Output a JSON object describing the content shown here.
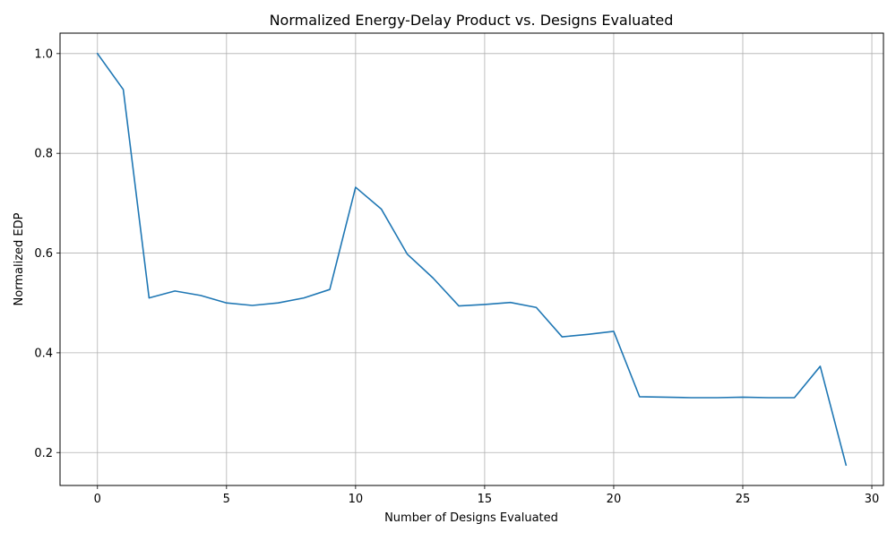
{
  "chart_data": {
    "type": "line",
    "title": "Normalized Energy-Delay Product vs. Designs Evaluated",
    "xlabel": "Number of Designs Evaluated",
    "ylabel": "Normalized EDP",
    "xlim": [
      -1.45,
      30.45
    ],
    "ylim": [
      0.134,
      1.041
    ],
    "x_ticks": [
      0,
      5,
      10,
      15,
      20,
      25,
      30
    ],
    "y_ticks": [
      0.2,
      0.4,
      0.6,
      0.8,
      1.0
    ],
    "x_tick_labels": [
      "0",
      "5",
      "10",
      "15",
      "20",
      "25",
      "30"
    ],
    "y_tick_labels": [
      "0.2",
      "0.4",
      "0.6",
      "0.8",
      "1.0"
    ],
    "grid": true,
    "series": [
      {
        "color": "#1f77b4",
        "x": [
          0,
          1,
          2,
          3,
          4,
          5,
          6,
          7,
          8,
          9,
          10,
          11,
          12,
          13,
          14,
          15,
          16,
          17,
          18,
          19,
          20,
          21,
          22,
          23,
          24,
          25,
          26,
          27,
          28,
          29
        ],
        "values": [
          1.0,
          0.928,
          0.51,
          0.524,
          0.515,
          0.5,
          0.495,
          0.5,
          0.51,
          0.527,
          0.732,
          0.688,
          0.598,
          0.55,
          0.494,
          0.497,
          0.501,
          0.491,
          0.432,
          0.437,
          0.443,
          0.312,
          0.311,
          0.31,
          0.31,
          0.311,
          0.31,
          0.31,
          0.373,
          0.175
        ]
      }
    ]
  }
}
